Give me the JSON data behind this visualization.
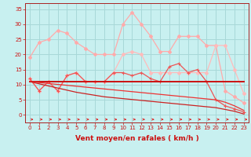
{
  "bg_color": "#c8f0f0",
  "grid_color": "#a8d8d8",
  "x": [
    0,
    1,
    2,
    3,
    4,
    5,
    6,
    7,
    8,
    9,
    10,
    11,
    12,
    13,
    14,
    15,
    16,
    17,
    18,
    19,
    20,
    21,
    22,
    23
  ],
  "lines": [
    {
      "label": "rafales_light",
      "y": [
        19,
        24,
        25,
        28,
        27,
        24,
        22,
        20,
        20,
        20,
        30,
        34,
        30,
        26,
        21,
        21,
        26,
        26,
        26,
        23,
        23,
        8,
        6,
        4
      ],
      "color": "#ffaaaa",
      "lw": 0.9,
      "marker": "D",
      "ms": 2.0
    },
    {
      "label": "vent_light",
      "y": [
        12,
        8,
        11,
        8,
        13,
        14,
        11,
        11,
        11,
        14,
        14,
        13,
        14,
        12,
        11,
        16,
        17,
        14,
        15,
        11,
        5,
        3,
        2,
        1
      ],
      "color": "#ff8888",
      "lw": 0.9,
      "marker": "+",
      "ms": 3.0
    },
    {
      "label": "mean_line",
      "y": [
        11,
        11,
        11,
        11,
        11,
        11,
        11,
        11,
        11,
        11,
        11,
        11,
        11,
        11,
        11,
        11,
        11,
        11,
        11,
        11,
        11,
        11,
        11,
        11
      ],
      "color": "#cc1111",
      "lw": 1.4,
      "marker": null,
      "ms": 0
    },
    {
      "label": "trend1",
      "y": [
        11,
        10.7,
        10.4,
        10.1,
        9.8,
        9.5,
        9.2,
        8.9,
        8.6,
        8.3,
        8.0,
        7.7,
        7.4,
        7.1,
        6.8,
        6.5,
        6.2,
        5.9,
        5.6,
        5.3,
        5.0,
        4.7,
        3.5,
        2.0
      ],
      "color": "#ee3333",
      "lw": 0.9,
      "marker": null,
      "ms": 0
    },
    {
      "label": "trend2",
      "y": [
        11,
        10.5,
        10.0,
        9.5,
        9.0,
        8.5,
        8.2,
        8.0,
        7.7,
        7.5,
        7.2,
        7.0,
        6.7,
        6.4,
        6.1,
        5.8,
        5.5,
        5.2,
        4.9,
        4.6,
        3.5,
        3.0,
        2.0,
        0.5
      ],
      "color": "#cc2222",
      "lw": 0.9,
      "marker": null,
      "ms": 0
    },
    {
      "label": "rafales_medium",
      "y": [
        null,
        null,
        null,
        null,
        null,
        null,
        null,
        null,
        null,
        null,
        null,
        null,
        null,
        null,
        null,
        null,
        null,
        null,
        null,
        null,
        null,
        null,
        null,
        null
      ],
      "color": "#ffbbbb",
      "lw": 0.9,
      "marker": "D",
      "ms": 2.0
    }
  ],
  "xlabel": "Vent moyen/en rafales ( km/h )",
  "xlabel_color": "#cc1111",
  "xlabel_fontsize": 6.5,
  "tick_color": "#cc1111",
  "tick_fontsize": 5.0,
  "ylim": [
    -2.5,
    37
  ],
  "xlim": [
    -0.5,
    23.5
  ],
  "yticks": [
    0,
    5,
    10,
    15,
    20,
    25,
    30,
    35
  ],
  "xticks": [
    0,
    1,
    2,
    3,
    4,
    5,
    6,
    7,
    8,
    9,
    10,
    11,
    12,
    13,
    14,
    15,
    16,
    17,
    18,
    19,
    20,
    21,
    22,
    23
  ]
}
